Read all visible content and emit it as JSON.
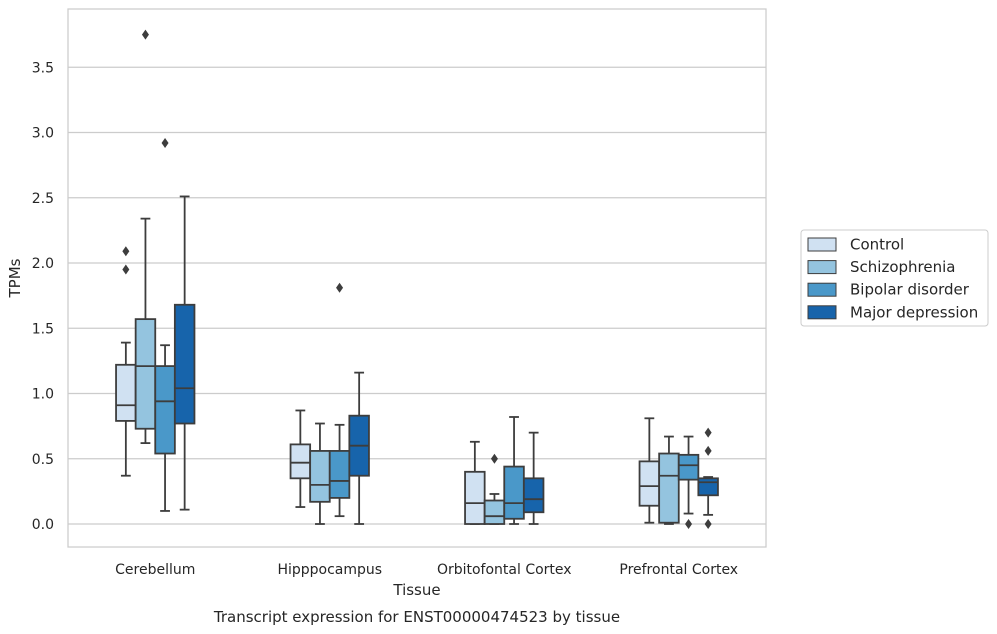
{
  "chart_data": {
    "type": "box",
    "title": "Transcript expression for ENST00000474523 by tissue",
    "xlabel": "Tissue",
    "ylabel": "TPMs",
    "ylim": [
      -0.18,
      3.95
    ],
    "yticks": [
      "0.0",
      "0.5",
      "1.0",
      "1.5",
      "2.0",
      "2.5",
      "3.0",
      "3.5"
    ],
    "grid": "horizontal",
    "legend_position": "right",
    "categories": [
      "Cerebellum",
      "Hipppocampus",
      "Orbitofontal Cortex",
      "Prefrontal Cortex"
    ],
    "series": [
      {
        "name": "Control",
        "color": "#d0e1f2",
        "boxes": [
          {
            "whislo": 0.37,
            "q1": 0.79,
            "med": 0.91,
            "q3": 1.22,
            "whishi": 1.39,
            "fliers": [
              1.95,
              2.09
            ]
          },
          {
            "whislo": 0.13,
            "q1": 0.35,
            "med": 0.47,
            "q3": 0.61,
            "whishi": 0.87,
            "fliers": []
          },
          {
            "whislo": 0.0,
            "q1": 0.0,
            "med": 0.16,
            "q3": 0.4,
            "whishi": 0.63,
            "fliers": []
          },
          {
            "whislo": 0.01,
            "q1": 0.14,
            "med": 0.29,
            "q3": 0.48,
            "whishi": 0.81,
            "fliers": []
          }
        ]
      },
      {
        "name": "Schizophrenia",
        "color": "#94c4df",
        "boxes": [
          {
            "whislo": 0.62,
            "q1": 0.73,
            "med": 1.21,
            "q3": 1.57,
            "whishi": 2.34,
            "fliers": [
              3.75
            ]
          },
          {
            "whislo": 0.0,
            "q1": 0.17,
            "med": 0.3,
            "q3": 0.56,
            "whishi": 0.77,
            "fliers": []
          },
          {
            "whislo": 0.0,
            "q1": 0.0,
            "med": 0.06,
            "q3": 0.18,
            "whishi": 0.23,
            "fliers": [
              0.5
            ]
          },
          {
            "whislo": 0.0,
            "q1": 0.01,
            "med": 0.37,
            "q3": 0.54,
            "whishi": 0.67,
            "fliers": []
          }
        ]
      },
      {
        "name": "Bipolar disorder",
        "color": "#4a98c9",
        "boxes": [
          {
            "whislo": 0.1,
            "q1": 0.54,
            "med": 0.94,
            "q3": 1.21,
            "whishi": 1.37,
            "fliers": [
              2.92
            ]
          },
          {
            "whislo": 0.06,
            "q1": 0.2,
            "med": 0.33,
            "q3": 0.56,
            "whishi": 0.76,
            "fliers": [
              1.81
            ]
          },
          {
            "whislo": 0.0,
            "q1": 0.04,
            "med": 0.16,
            "q3": 0.44,
            "whishi": 0.82,
            "fliers": []
          },
          {
            "whislo": 0.08,
            "q1": 0.34,
            "med": 0.45,
            "q3": 0.53,
            "whishi": 0.67,
            "fliers": [
              0.0
            ]
          }
        ]
      },
      {
        "name": "Major depression",
        "color": "#1764ab",
        "boxes": [
          {
            "whislo": 0.11,
            "q1": 0.77,
            "med": 1.04,
            "q3": 1.68,
            "whishi": 2.51,
            "fliers": []
          },
          {
            "whislo": 0.0,
            "q1": 0.37,
            "med": 0.6,
            "q3": 0.83,
            "whishi": 1.16,
            "fliers": []
          },
          {
            "whislo": 0.0,
            "q1": 0.09,
            "med": 0.19,
            "q3": 0.35,
            "whishi": 0.7,
            "fliers": []
          },
          {
            "whislo": 0.07,
            "q1": 0.22,
            "med": 0.32,
            "q3": 0.35,
            "whishi": 0.36,
            "fliers": [
              0.0,
              0.56,
              0.7
            ]
          }
        ]
      }
    ]
  }
}
